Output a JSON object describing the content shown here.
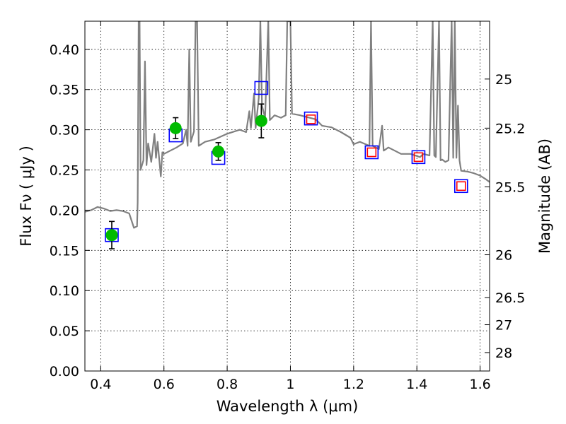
{
  "chart_data": {
    "type": "scatter",
    "xlabel": "Wavelength  λ (μm)",
    "ylabel": "Flux  Fν  ( μJy )",
    "ylabel_right": "Magnitude (AB)",
    "xlim": [
      0.35,
      1.63
    ],
    "ylim": [
      0.0,
      0.435
    ],
    "x_ticks": [
      0.4,
      0.6,
      0.8,
      1.0,
      1.2,
      1.4,
      1.6
    ],
    "x_tick_labels": [
      "0.4",
      "0.6",
      "0.8",
      "1",
      "1.2",
      "1.4",
      "1.6"
    ],
    "y_ticks": [
      0.0,
      0.05,
      0.1,
      0.15,
      0.2,
      0.25,
      0.3,
      0.35,
      0.4
    ],
    "y_tick_labels": [
      "0.00",
      "0.05",
      "0.10",
      "0.15",
      "0.20",
      "0.25",
      "0.30",
      "0.35",
      "0.40"
    ],
    "mag_ticks": [
      25,
      25.2,
      25.5,
      26,
      26.5,
      27,
      28
    ],
    "mag_tick_labels": [
      "25",
      "25.2",
      "25.5",
      "26",
      "26.5",
      "27",
      "28"
    ],
    "grid": true,
    "series": [
      {
        "marker": "line",
        "color": "#808080",
        "points": [
          [
            0.35,
            0.198
          ],
          [
            0.37,
            0.2
          ],
          [
            0.39,
            0.204
          ],
          [
            0.41,
            0.202
          ],
          [
            0.43,
            0.199
          ],
          [
            0.45,
            0.2
          ],
          [
            0.47,
            0.199
          ],
          [
            0.49,
            0.196
          ],
          [
            0.505,
            0.178
          ],
          [
            0.515,
            0.18
          ],
          [
            0.517,
            0.21
          ],
          [
            0.52,
            0.435
          ],
          [
            0.523,
            0.435
          ],
          [
            0.526,
            0.25
          ],
          [
            0.535,
            0.262
          ],
          [
            0.54,
            0.385
          ],
          [
            0.545,
            0.256
          ],
          [
            0.55,
            0.283
          ],
          [
            0.56,
            0.26
          ],
          [
            0.57,
            0.295
          ],
          [
            0.575,
            0.265
          ],
          [
            0.58,
            0.285
          ],
          [
            0.59,
            0.242
          ],
          [
            0.595,
            0.272
          ],
          [
            0.6,
            0.27
          ],
          [
            0.62,
            0.274
          ],
          [
            0.64,
            0.278
          ],
          [
            0.66,
            0.283
          ],
          [
            0.67,
            0.3
          ],
          [
            0.675,
            0.28
          ],
          [
            0.68,
            0.4
          ],
          [
            0.685,
            0.285
          ],
          [
            0.695,
            0.298
          ],
          [
            0.7,
            0.435
          ],
          [
            0.705,
            0.435
          ],
          [
            0.71,
            0.28
          ],
          [
            0.73,
            0.285
          ],
          [
            0.76,
            0.288
          ],
          [
            0.8,
            0.295
          ],
          [
            0.84,
            0.3
          ],
          [
            0.86,
            0.297
          ],
          [
            0.87,
            0.323
          ],
          [
            0.875,
            0.302
          ],
          [
            0.885,
            0.345
          ],
          [
            0.89,
            0.302
          ],
          [
            0.9,
            0.34
          ],
          [
            0.905,
            0.435
          ],
          [
            0.91,
            0.33
          ],
          [
            0.92,
            0.315
          ],
          [
            0.93,
            0.435
          ],
          [
            0.935,
            0.312
          ],
          [
            0.95,
            0.318
          ],
          [
            0.97,
            0.315
          ],
          [
            0.985,
            0.318
          ],
          [
            0.99,
            0.435
          ],
          [
            1.0,
            0.435
          ],
          [
            1.005,
            0.32
          ],
          [
            1.03,
            0.318
          ],
          [
            1.05,
            0.316
          ],
          [
            1.08,
            0.313
          ],
          [
            1.1,
            0.305
          ],
          [
            1.13,
            0.303
          ],
          [
            1.16,
            0.297
          ],
          [
            1.19,
            0.29
          ],
          [
            1.2,
            0.282
          ],
          [
            1.22,
            0.285
          ],
          [
            1.25,
            0.28
          ],
          [
            1.255,
            0.435
          ],
          [
            1.26,
            0.28
          ],
          [
            1.28,
            0.276
          ],
          [
            1.29,
            0.305
          ],
          [
            1.295,
            0.274
          ],
          [
            1.31,
            0.278
          ],
          [
            1.33,
            0.274
          ],
          [
            1.35,
            0.27
          ],
          [
            1.38,
            0.27
          ],
          [
            1.41,
            0.266
          ],
          [
            1.42,
            0.27
          ],
          [
            1.44,
            0.268
          ],
          [
            1.45,
            0.435
          ],
          [
            1.455,
            0.268
          ],
          [
            1.46,
            0.266
          ],
          [
            1.47,
            0.435
          ],
          [
            1.475,
            0.262
          ],
          [
            1.48,
            0.263
          ],
          [
            1.49,
            0.26
          ],
          [
            1.5,
            0.262
          ],
          [
            1.51,
            0.435
          ],
          [
            1.515,
            0.265
          ],
          [
            1.52,
            0.435
          ],
          [
            1.525,
            0.265
          ],
          [
            1.53,
            0.33
          ],
          [
            1.535,
            0.262
          ],
          [
            1.54,
            0.249
          ],
          [
            1.56,
            0.248
          ],
          [
            1.58,
            0.246
          ],
          [
            1.6,
            0.243
          ],
          [
            1.62,
            0.238
          ],
          [
            1.63,
            0.235
          ]
        ]
      },
      {
        "marker": "square",
        "color": "#0000ff",
        "points": [
          [
            0.435,
            0.169
          ],
          [
            0.637,
            0.293
          ],
          [
            0.772,
            0.265
          ],
          [
            0.908,
            0.352
          ],
          [
            1.065,
            0.314
          ],
          [
            1.257,
            0.272
          ],
          [
            1.405,
            0.266
          ],
          [
            1.54,
            0.23
          ]
        ]
      },
      {
        "marker": "square",
        "color": "#ff0000",
        "points": [
          [
            1.065,
            0.313
          ],
          [
            1.257,
            0.272
          ],
          [
            1.405,
            0.266
          ],
          [
            1.54,
            0.23
          ]
        ]
      },
      {
        "marker": "circle-errorbar",
        "color": "#00bb00",
        "points": [
          [
            0.435,
            0.169,
            0.017
          ],
          [
            0.637,
            0.302,
            0.013
          ],
          [
            0.772,
            0.273,
            0.011
          ],
          [
            0.908,
            0.311,
            0.021
          ]
        ]
      }
    ]
  }
}
